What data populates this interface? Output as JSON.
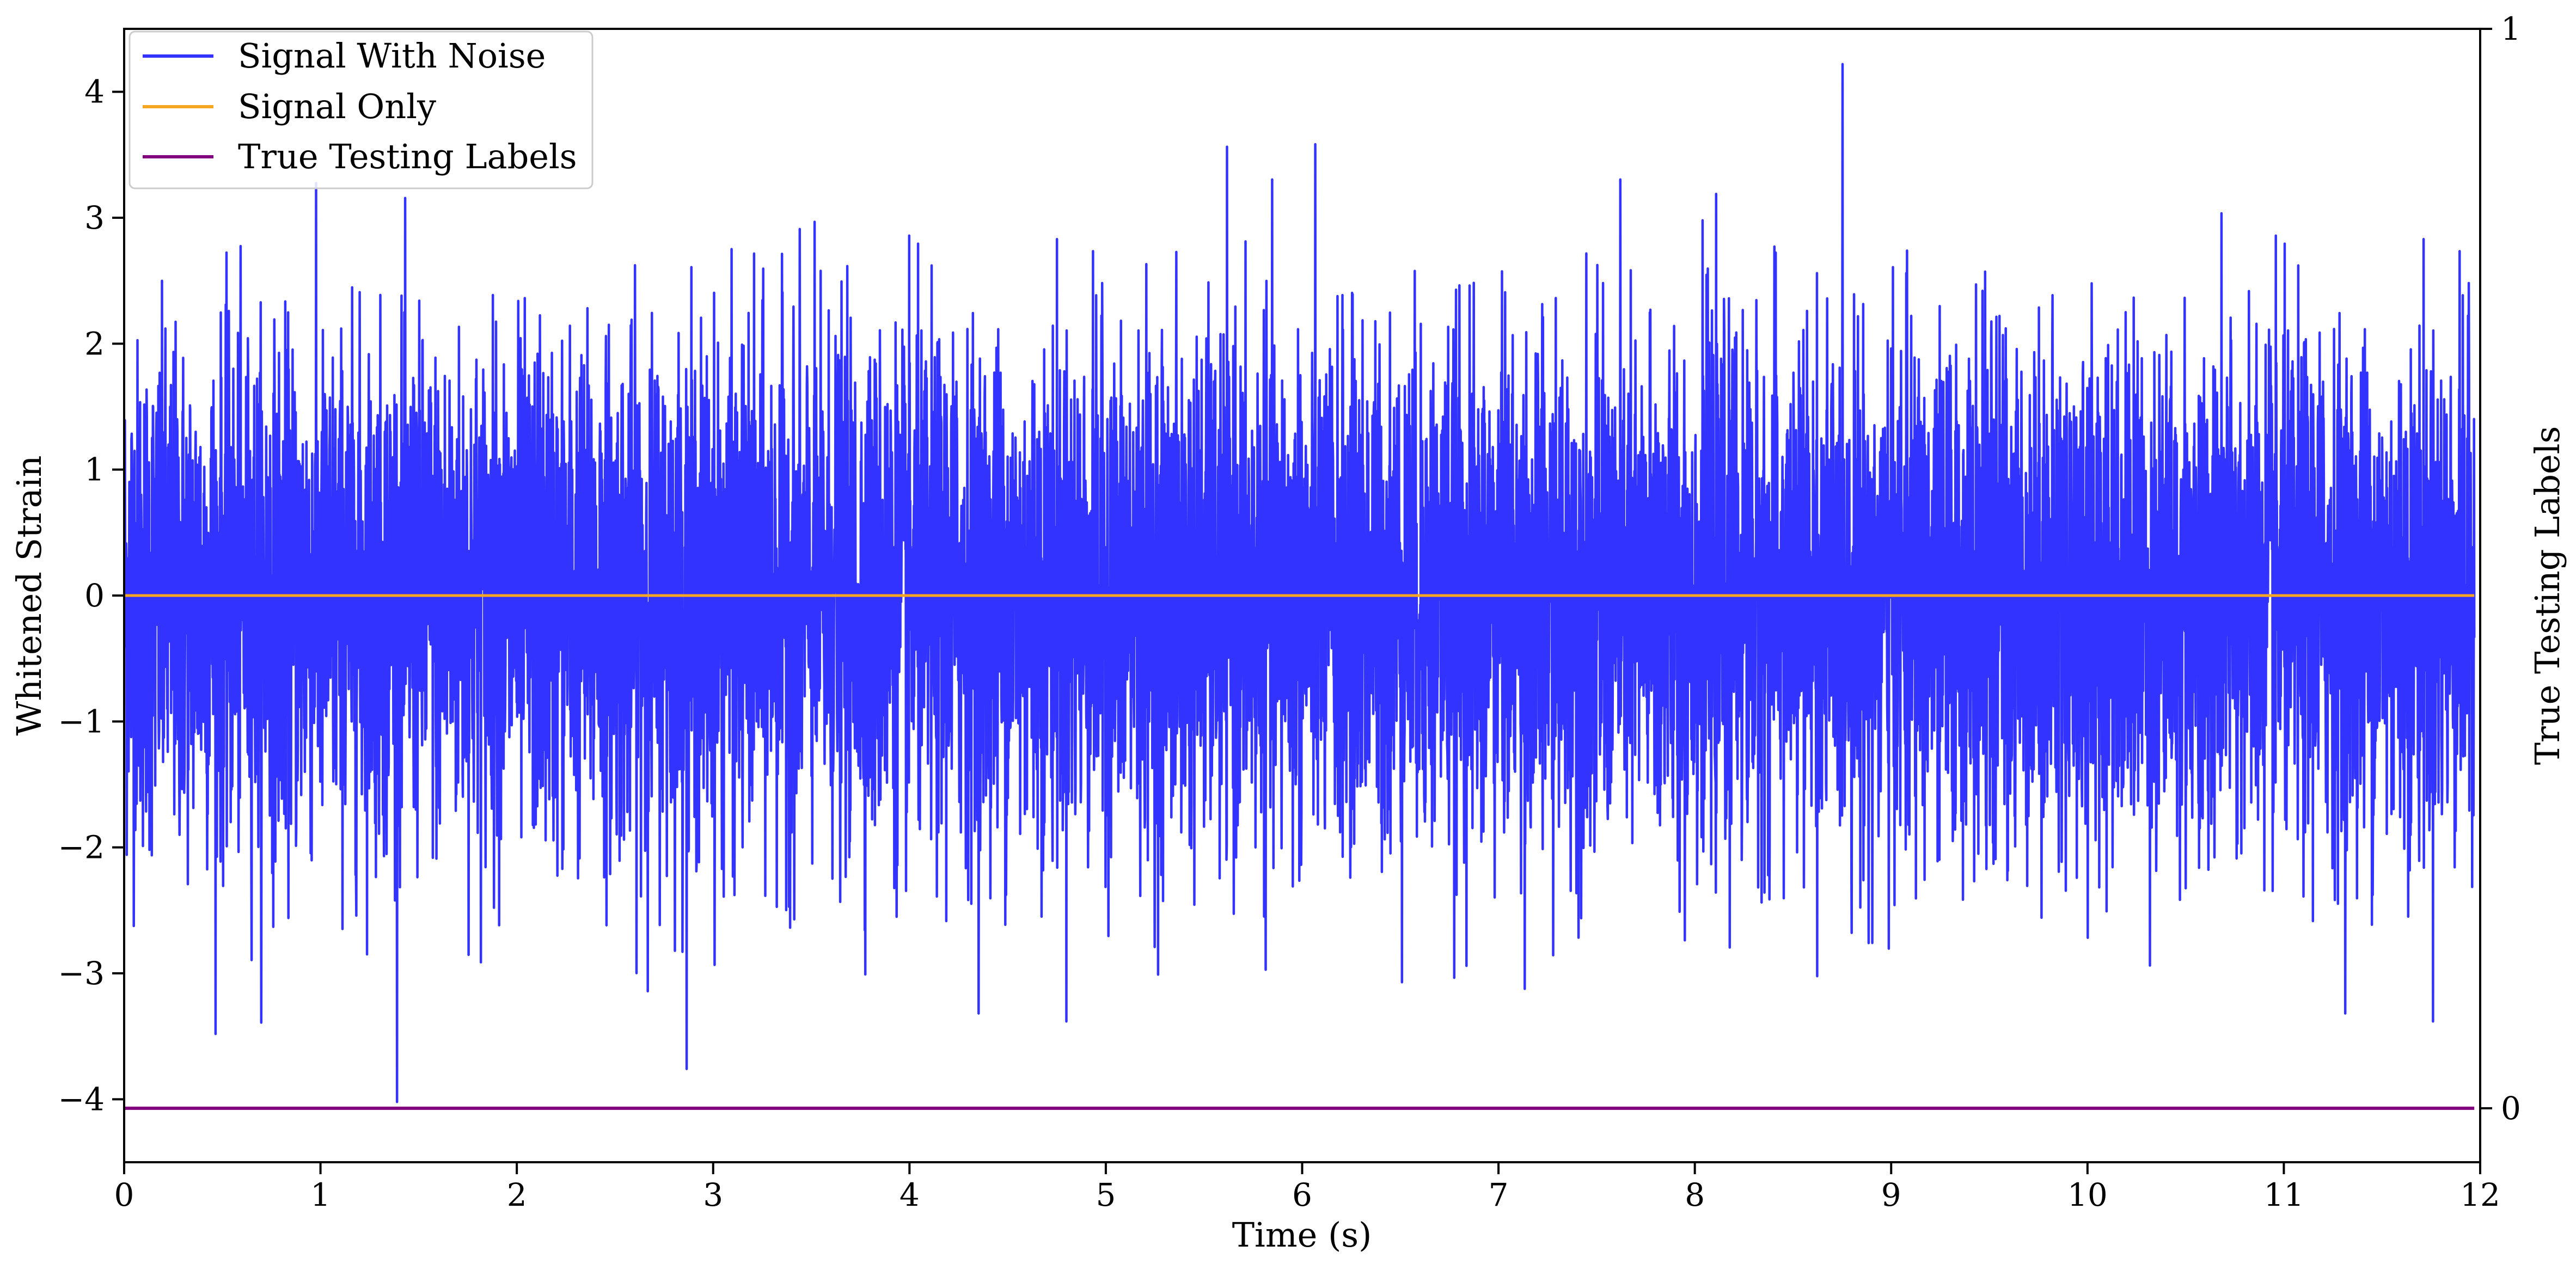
{
  "chart_data": {
    "type": "line",
    "xlabel": "Time (s)",
    "ylabel": "Whitened Strain",
    "y2label": "True Testing Labels",
    "xlim": [
      0,
      12
    ],
    "ylim": [
      -4.5,
      4.5
    ],
    "y2lim": [
      -0.05,
      1.0
    ],
    "x_ticks": [
      0,
      1,
      2,
      3,
      4,
      5,
      6,
      7,
      8,
      9,
      10,
      11,
      12
    ],
    "y_ticks": [
      -4,
      -3,
      -2,
      -1,
      0,
      1,
      2,
      3,
      4
    ],
    "y_tick_labels": [
      "−4",
      "−3",
      "−2",
      "−1",
      "0",
      "1",
      "2",
      "3",
      "4"
    ],
    "y2_ticks": [
      0,
      1
    ],
    "y2_tick_labels": [
      "0",
      "1"
    ],
    "legend_position": "top-left",
    "grid": false,
    "series": [
      {
        "name": "Signal With Noise",
        "color": "#3333ff",
        "description_values": {
          "x_range": [
            0,
            11.97
          ],
          "typical_amplitude": 1.0,
          "max": 4.22,
          "min": -4.05
        }
      },
      {
        "name": "Signal Only",
        "color": "#f5a623",
        "x": [
          0,
          11.97
        ],
        "y": [
          0,
          0
        ]
      },
      {
        "name": "True Testing Labels",
        "color": "#800080",
        "axis": "right",
        "x": [
          0,
          11.97
        ],
        "y": [
          0,
          0
        ]
      }
    ]
  }
}
